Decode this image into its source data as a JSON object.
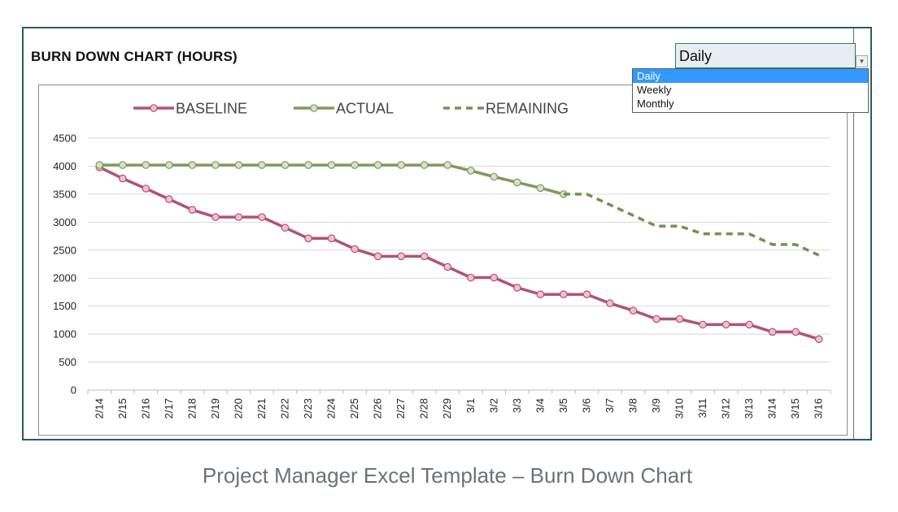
{
  "chart_title": "BURN DOWN CHART (HOURS)",
  "dropdown": {
    "selected": "Daily",
    "options": [
      "Daily",
      "Weekly",
      "Monthly"
    ],
    "highlighted_index": 0
  },
  "caption": "Project Manager Excel Template – Burn Down Chart",
  "colors": {
    "baseline": "#b0546f",
    "baseline_marker_fill": "#f3c0cb",
    "actual": "#7e9a5e",
    "actual_marker_fill": "#d4e4c4",
    "remaining": "#6f9450",
    "frame": "#2b5b63",
    "gridline": "#d9d9d9"
  },
  "chart_data": {
    "type": "line",
    "title": "BURN DOWN CHART (HOURS)",
    "xlabel": "",
    "ylabel": "",
    "ylim": [
      0,
      4500
    ],
    "yticks": [
      0,
      500,
      1000,
      1500,
      2000,
      2500,
      3000,
      3500,
      4000,
      4500
    ],
    "grid": true,
    "legend_position": "top",
    "categories": [
      "2/14",
      "2/15",
      "2/16",
      "2/17",
      "2/18",
      "2/19",
      "2/20",
      "2/21",
      "2/22",
      "2/23",
      "2/24",
      "2/25",
      "2/26",
      "2/27",
      "2/28",
      "2/29",
      "3/1",
      "3/2",
      "3/3",
      "3/4",
      "3/5",
      "3/6",
      "3/7",
      "3/8",
      "3/9",
      "3/10",
      "3/11",
      "3/12",
      "3/13",
      "3/14",
      "3/15",
      "3/16"
    ],
    "series": [
      {
        "name": "BASELINE",
        "style": "solid-markers",
        "values": [
          3980,
          3780,
          3600,
          3410,
          3220,
          3090,
          3090,
          3090,
          2900,
          2710,
          2710,
          2520,
          2390,
          2390,
          2390,
          2200,
          2010,
          2010,
          1830,
          1710,
          1710,
          1710,
          1550,
          1420,
          1270,
          1270,
          1170,
          1170,
          1170,
          1040,
          1040,
          910
        ]
      },
      {
        "name": "ACTUAL",
        "style": "solid-markers",
        "values": [
          4020,
          4020,
          4020,
          4020,
          4020,
          4020,
          4020,
          4020,
          4020,
          4020,
          4020,
          4020,
          4020,
          4020,
          4020,
          4020,
          3920,
          3810,
          3710,
          3610,
          3500,
          null,
          null,
          null,
          null,
          null,
          null,
          null,
          null,
          null,
          null,
          null
        ]
      },
      {
        "name": "REMAINING",
        "style": "dashed",
        "values": [
          null,
          null,
          null,
          null,
          null,
          null,
          null,
          null,
          null,
          null,
          null,
          null,
          null,
          null,
          null,
          null,
          null,
          null,
          null,
          null,
          3500,
          3500,
          3310,
          3120,
          2930,
          2930,
          2790,
          2790,
          2790,
          2600,
          2600,
          2410
        ]
      }
    ]
  }
}
